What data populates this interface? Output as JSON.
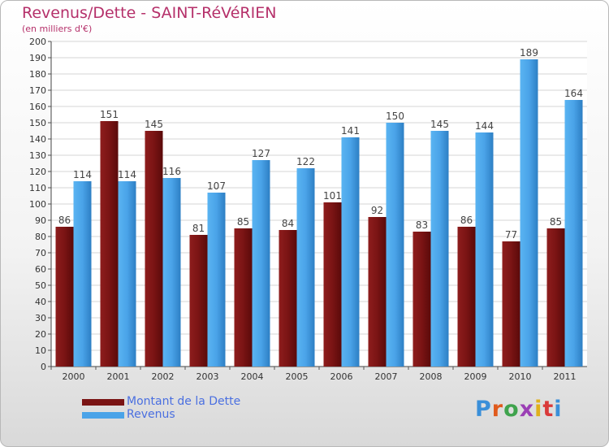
{
  "header": {
    "title": "Revenus/Dette - SAINT-RéVéRIEN",
    "subtitle": "(en milliers d'€)"
  },
  "logo": {
    "text": "Proxiti",
    "letter_colors": [
      "#3a8fd9",
      "#e05a1c",
      "#3fa34d",
      "#9b3fb5",
      "#e0b01c",
      "#d93a3a",
      "#3a8fd9"
    ]
  },
  "colors": {
    "debt": "#7a1414",
    "revenue": "#4aa3e8",
    "title": "#b5306a",
    "legend_text": "#4a6fe0"
  },
  "chart_data": {
    "type": "bar",
    "title": "Revenus/Dette - SAINT-RéVéRIEN",
    "ylabel": "(en milliers d'€)",
    "xlabel": "",
    "ylim": [
      0,
      200
    ],
    "ytick_step": 10,
    "grid": true,
    "legend_position": "bottom-left",
    "categories": [
      "2000",
      "2001",
      "2002",
      "2003",
      "2004",
      "2005",
      "2006",
      "2007",
      "2008",
      "2009",
      "2010",
      "2011"
    ],
    "series": [
      {
        "name": "Montant de la Dette",
        "color": "#7a1414",
        "values": [
          86,
          151,
          145,
          81,
          85,
          84,
          101,
          92,
          83,
          86,
          77,
          85
        ]
      },
      {
        "name": "Revenus",
        "color": "#4aa3e8",
        "values": [
          114,
          114,
          116,
          107,
          127,
          122,
          141,
          150,
          145,
          144,
          189,
          164
        ]
      }
    ]
  }
}
